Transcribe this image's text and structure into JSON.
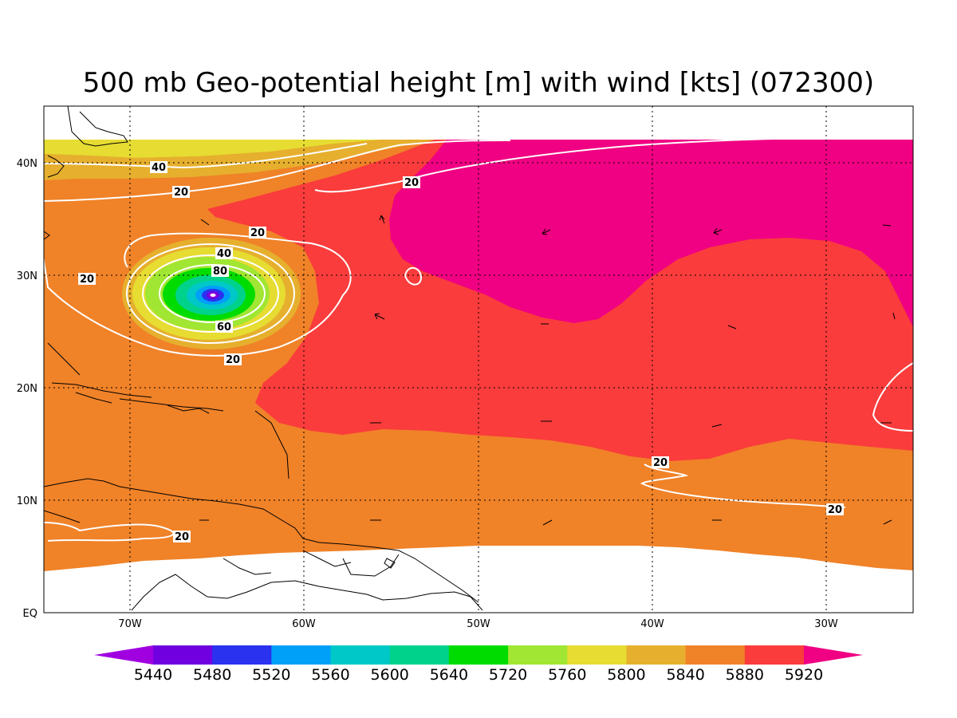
{
  "title": "500 mb Geo-potential height [m] with wind [kts] (072300)",
  "axes": {
    "x_ticks": [
      "70W",
      "60W",
      "50W",
      "40W",
      "30W"
    ],
    "y_ticks": [
      "EQ",
      "10N",
      "20N",
      "30N",
      "40N"
    ]
  },
  "colorbar": {
    "labels": [
      "5440",
      "5480",
      "5520",
      "5560",
      "5600",
      "5640",
      "5720",
      "5760",
      "5800",
      "5840",
      "5880",
      "5920"
    ],
    "colors": [
      "#a000e0",
      "#7000e0",
      "#2a32f0",
      "#00a0f8",
      "#00c8c8",
      "#00d28c",
      "#00dc00",
      "#a0e632",
      "#e6dc32",
      "#e6af2d",
      "#f08228",
      "#fa3c3c",
      "#f00082"
    ]
  },
  "contour_labels": [
    "40",
    "20",
    "20",
    "20",
    "40",
    "80",
    "20",
    "60",
    "20",
    "20",
    "20",
    "20"
  ],
  "colors": {
    "orange": "#f08228",
    "red": "#fa3c3c",
    "magenta": "#f00082",
    "yellow": "#e6dc32",
    "gold": "#e6af2d"
  }
}
